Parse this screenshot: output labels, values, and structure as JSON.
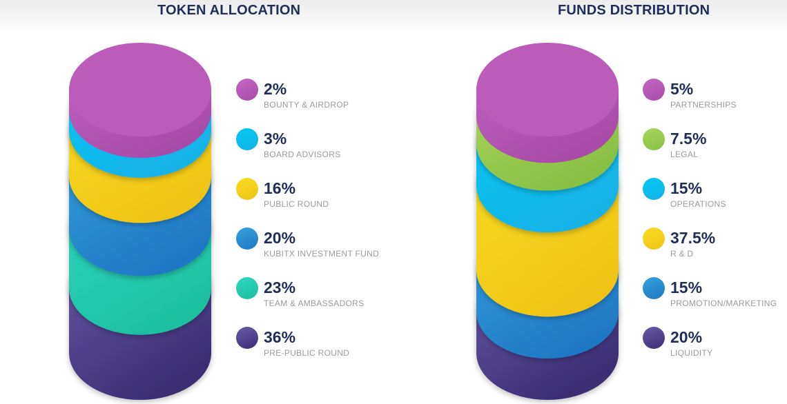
{
  "chart_data": [
    {
      "type": "stacked-cylinder",
      "title": "TOKEN ALLOCATION",
      "segments": [
        {
          "value": 2,
          "percent_label": "2%",
          "label": "BOUNTY & AIRDROP",
          "color": "#bb5cbb"
        },
        {
          "value": 3,
          "percent_label": "3%",
          "label": "BOARD ADVISORS",
          "color": "#35bbdb"
        },
        {
          "value": 16,
          "percent_label": "16%",
          "label": "PUBLIC ROUND",
          "color": "#f0d21a"
        },
        {
          "value": 20,
          "percent_label": "20%",
          "label": "KUBITX INVESTMENT FUND",
          "color": "#2891cf"
        },
        {
          "value": 23,
          "percent_label": "23%",
          "label": "TEAM & AMBASSADORS",
          "color": "#22cbb0"
        },
        {
          "value": 36,
          "percent_label": "36%",
          "label": "PRE-PUBLIC ROUND",
          "color": "#504090"
        }
      ]
    },
    {
      "type": "stacked-cylinder",
      "title": "FUNDS DISTRIBUTION",
      "segments": [
        {
          "value": 5,
          "percent_label": "5%",
          "label": "PARTNERSHIPS",
          "color": "#bb5cbb"
        },
        {
          "value": 7.5,
          "percent_label": "7.5%",
          "label": "LEGAL",
          "color": "#9fd052"
        },
        {
          "value": 15,
          "percent_label": "15%",
          "label": "OPERATIONS",
          "color": "#35bbdb"
        },
        {
          "value": 37.5,
          "percent_label": "37.5%",
          "label": "R & D",
          "color": "#f0d21a"
        },
        {
          "value": 15,
          "percent_label": "15%",
          "label": "PROMOTION/MARKETING",
          "color": "#2891cf"
        },
        {
          "value": 20,
          "percent_label": "20%",
          "label": "LIQUIDITY",
          "color": "#504090"
        }
      ]
    }
  ],
  "theme": {
    "title_color": "#1f2d5c",
    "label_color": "#9a9a9a"
  },
  "palette": {
    "#bb5cbb": [
      "#c466c4",
      "#a94ba9"
    ],
    "#35bbdb": [
      "#00c8f0",
      "#16b2e8"
    ],
    "#9fd052": [
      "#aad65e",
      "#88c043"
    ],
    "#f0d21a": [
      "#f8dc22",
      "#f0c416"
    ],
    "#2891cf": [
      "#34a2da",
      "#1f78c4"
    ],
    "#22cbb0": [
      "#2ed6bf",
      "#1ebf9e"
    ],
    "#504090": [
      "#6a5aa8",
      "#3a2d73"
    ]
  }
}
